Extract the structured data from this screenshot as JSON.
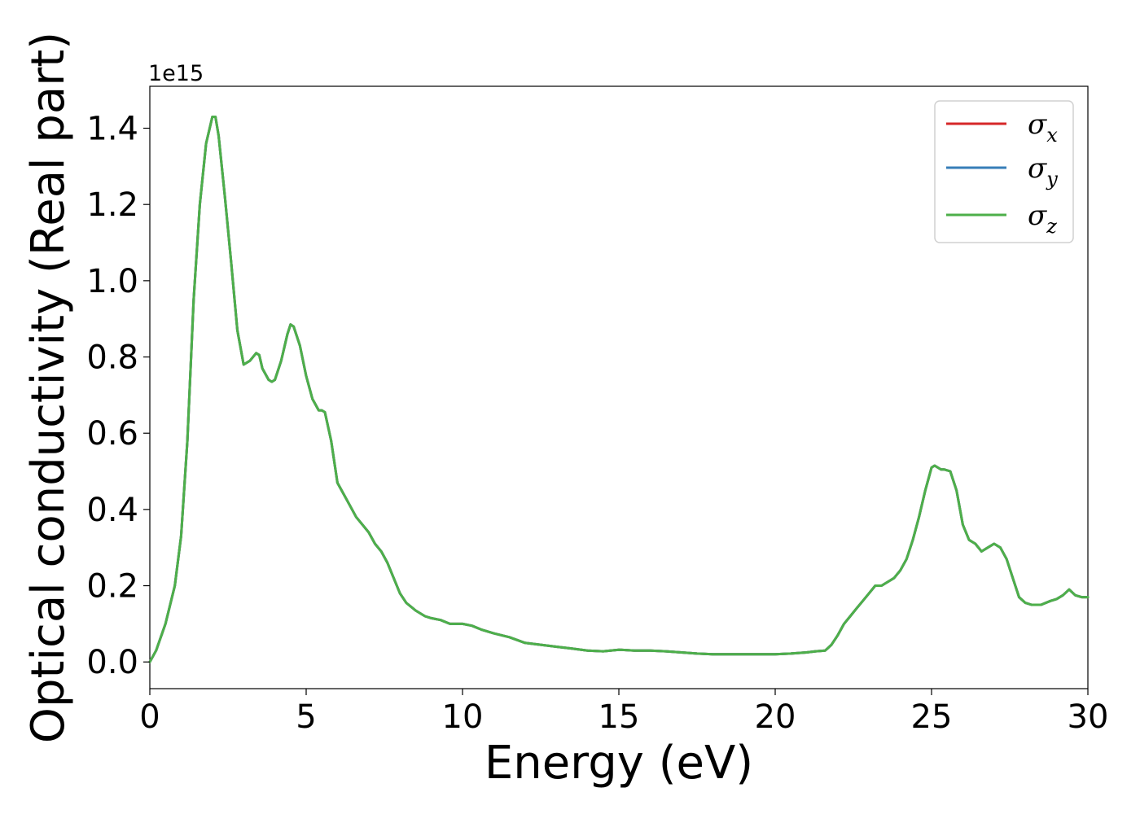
{
  "chart_data": {
    "type": "line",
    "title": "",
    "xlabel": "Energy (eV)",
    "ylabel": "Optical conductivity (Real part)",
    "y_offset_label": "1e15",
    "xlim": [
      0,
      30
    ],
    "ylim": [
      -0.07,
      1.51
    ],
    "xticks": [
      0,
      5,
      10,
      15,
      20,
      25,
      30
    ],
    "xtick_labels": [
      "0",
      "5",
      "10",
      "15",
      "20",
      "25",
      "30"
    ],
    "yticks": [
      0.0,
      0.2,
      0.4,
      0.6,
      0.8,
      1.0,
      1.2,
      1.4
    ],
    "ytick_labels": [
      "0.0",
      "0.2",
      "0.4",
      "0.6",
      "0.8",
      "1.0",
      "1.2",
      "1.4"
    ],
    "grid": false,
    "legend_position": "top-right",
    "x": [
      0,
      0.2,
      0.5,
      0.8,
      1.0,
      1.2,
      1.4,
      1.6,
      1.8,
      2.0,
      2.1,
      2.2,
      2.4,
      2.6,
      2.8,
      3.0,
      3.2,
      3.4,
      3.5,
      3.6,
      3.8,
      3.9,
      4.0,
      4.2,
      4.4,
      4.5,
      4.6,
      4.8,
      5.0,
      5.2,
      5.4,
      5.5,
      5.6,
      5.8,
      6.0,
      6.2,
      6.4,
      6.6,
      6.8,
      7.0,
      7.2,
      7.4,
      7.6,
      7.8,
      8.0,
      8.2,
      8.5,
      8.8,
      9.0,
      9.3,
      9.6,
      10.0,
      10.3,
      10.6,
      11.0,
      11.5,
      12.0,
      12.5,
      13.0,
      13.5,
      14.0,
      14.5,
      15.0,
      15.5,
      16.0,
      16.5,
      17.0,
      17.5,
      18.0,
      18.5,
      19.0,
      19.5,
      20.0,
      20.5,
      21.0,
      21.3,
      21.6,
      21.8,
      22.0,
      22.2,
      22.4,
      22.6,
      22.8,
      23.0,
      23.2,
      23.4,
      23.6,
      23.8,
      24.0,
      24.2,
      24.4,
      24.6,
      24.8,
      25.0,
      25.1,
      25.2,
      25.3,
      25.4,
      25.6,
      25.8,
      26.0,
      26.2,
      26.4,
      26.6,
      26.8,
      27.0,
      27.2,
      27.4,
      27.6,
      27.8,
      28.0,
      28.2,
      28.5,
      28.8,
      29.0,
      29.2,
      29.4,
      29.6,
      29.8,
      30.0
    ],
    "series": [
      {
        "name": "σx",
        "color": "#d62728",
        "values": [
          0.0,
          0.03,
          0.1,
          0.2,
          0.33,
          0.58,
          0.95,
          1.2,
          1.36,
          1.43,
          1.43,
          1.38,
          1.22,
          1.05,
          0.87,
          0.78,
          0.79,
          0.81,
          0.805,
          0.77,
          0.74,
          0.735,
          0.74,
          0.79,
          0.86,
          0.885,
          0.88,
          0.83,
          0.75,
          0.69,
          0.66,
          0.66,
          0.655,
          0.58,
          0.47,
          0.44,
          0.41,
          0.38,
          0.36,
          0.34,
          0.31,
          0.29,
          0.26,
          0.22,
          0.18,
          0.155,
          0.135,
          0.12,
          0.115,
          0.11,
          0.1,
          0.1,
          0.095,
          0.085,
          0.075,
          0.065,
          0.05,
          0.045,
          0.04,
          0.035,
          0.03,
          0.028,
          0.032,
          0.03,
          0.03,
          0.028,
          0.025,
          0.022,
          0.02,
          0.02,
          0.02,
          0.02,
          0.02,
          0.022,
          0.025,
          0.028,
          0.03,
          0.045,
          0.07,
          0.1,
          0.12,
          0.14,
          0.16,
          0.18,
          0.2,
          0.2,
          0.21,
          0.22,
          0.24,
          0.27,
          0.32,
          0.38,
          0.45,
          0.51,
          0.515,
          0.51,
          0.505,
          0.505,
          0.5,
          0.45,
          0.36,
          0.32,
          0.31,
          0.29,
          0.3,
          0.31,
          0.3,
          0.27,
          0.22,
          0.17,
          0.155,
          0.15,
          0.15,
          0.16,
          0.165,
          0.175,
          0.19,
          0.175,
          0.17,
          0.17
        ]
      },
      {
        "name": "σy",
        "color": "#377eb8",
        "values": [
          0.0,
          0.03,
          0.1,
          0.2,
          0.33,
          0.58,
          0.95,
          1.2,
          1.36,
          1.43,
          1.43,
          1.38,
          1.22,
          1.05,
          0.87,
          0.78,
          0.79,
          0.81,
          0.805,
          0.77,
          0.74,
          0.735,
          0.74,
          0.79,
          0.86,
          0.885,
          0.88,
          0.83,
          0.75,
          0.69,
          0.66,
          0.66,
          0.655,
          0.58,
          0.47,
          0.44,
          0.41,
          0.38,
          0.36,
          0.34,
          0.31,
          0.29,
          0.26,
          0.22,
          0.18,
          0.155,
          0.135,
          0.12,
          0.115,
          0.11,
          0.1,
          0.1,
          0.095,
          0.085,
          0.075,
          0.065,
          0.05,
          0.045,
          0.04,
          0.035,
          0.03,
          0.028,
          0.032,
          0.03,
          0.03,
          0.028,
          0.025,
          0.022,
          0.02,
          0.02,
          0.02,
          0.02,
          0.02,
          0.022,
          0.025,
          0.028,
          0.03,
          0.045,
          0.07,
          0.1,
          0.12,
          0.14,
          0.16,
          0.18,
          0.2,
          0.2,
          0.21,
          0.22,
          0.24,
          0.27,
          0.32,
          0.38,
          0.45,
          0.51,
          0.515,
          0.51,
          0.505,
          0.505,
          0.5,
          0.45,
          0.36,
          0.32,
          0.31,
          0.29,
          0.3,
          0.31,
          0.3,
          0.27,
          0.22,
          0.17,
          0.155,
          0.15,
          0.15,
          0.16,
          0.165,
          0.175,
          0.19,
          0.175,
          0.17,
          0.17
        ]
      },
      {
        "name": "σz",
        "color": "#4daf4a",
        "values": [
          0.0,
          0.03,
          0.1,
          0.2,
          0.33,
          0.58,
          0.95,
          1.2,
          1.36,
          1.43,
          1.43,
          1.38,
          1.22,
          1.05,
          0.87,
          0.78,
          0.79,
          0.81,
          0.805,
          0.77,
          0.74,
          0.735,
          0.74,
          0.79,
          0.86,
          0.885,
          0.88,
          0.83,
          0.75,
          0.69,
          0.66,
          0.66,
          0.655,
          0.58,
          0.47,
          0.44,
          0.41,
          0.38,
          0.36,
          0.34,
          0.31,
          0.29,
          0.26,
          0.22,
          0.18,
          0.155,
          0.135,
          0.12,
          0.115,
          0.11,
          0.1,
          0.1,
          0.095,
          0.085,
          0.075,
          0.065,
          0.05,
          0.045,
          0.04,
          0.035,
          0.03,
          0.028,
          0.032,
          0.03,
          0.03,
          0.028,
          0.025,
          0.022,
          0.02,
          0.02,
          0.02,
          0.02,
          0.02,
          0.022,
          0.025,
          0.028,
          0.03,
          0.045,
          0.07,
          0.1,
          0.12,
          0.14,
          0.16,
          0.18,
          0.2,
          0.2,
          0.21,
          0.22,
          0.24,
          0.27,
          0.32,
          0.38,
          0.45,
          0.51,
          0.515,
          0.51,
          0.505,
          0.505,
          0.5,
          0.45,
          0.36,
          0.32,
          0.31,
          0.29,
          0.3,
          0.31,
          0.3,
          0.27,
          0.22,
          0.17,
          0.155,
          0.15,
          0.15,
          0.16,
          0.165,
          0.175,
          0.19,
          0.175,
          0.17,
          0.17
        ]
      }
    ],
    "legend": [
      {
        "symbol": "σ",
        "sub": "x"
      },
      {
        "symbol": "σ",
        "sub": "y"
      },
      {
        "symbol": "σ",
        "sub": "z"
      }
    ]
  }
}
